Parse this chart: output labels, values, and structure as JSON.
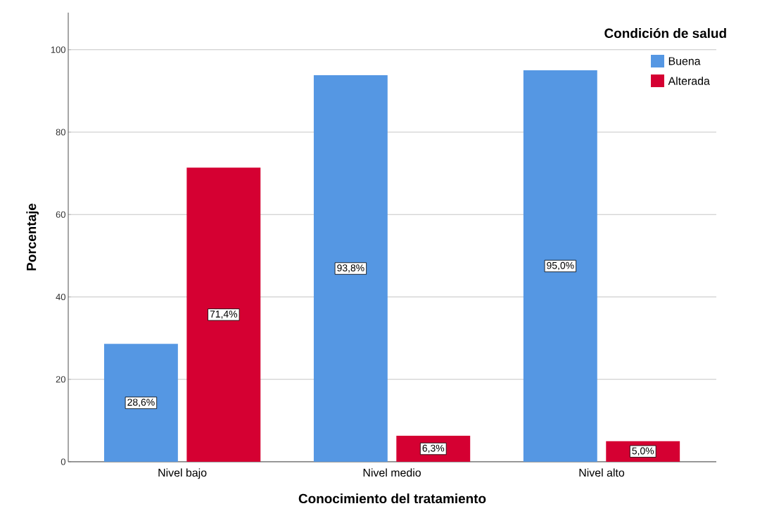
{
  "chart_data": {
    "type": "bar",
    "xlabel": "Conocimiento del tratamiento",
    "ylabel": "Porcentaje",
    "legend_title": "Condición de salud",
    "categories": [
      "Nivel bajo",
      "Nivel medio",
      "Nivel alto"
    ],
    "series": [
      {
        "name": "Buena",
        "color": "#5597e3",
        "values": [
          28.6,
          93.8,
          95.0
        ],
        "value_labels": [
          "28,6%",
          "93,8%",
          "95,0%"
        ]
      },
      {
        "name": "Alterada",
        "color": "#d50032",
        "values": [
          71.4,
          6.3,
          5.0
        ],
        "value_labels": [
          "71,4%",
          "6,3%",
          "5,0%"
        ]
      }
    ],
    "ylim": [
      0,
      109
    ],
    "yticks": [
      0,
      20,
      40,
      60,
      80,
      100
    ],
    "grid": "y",
    "legend": "top right"
  }
}
